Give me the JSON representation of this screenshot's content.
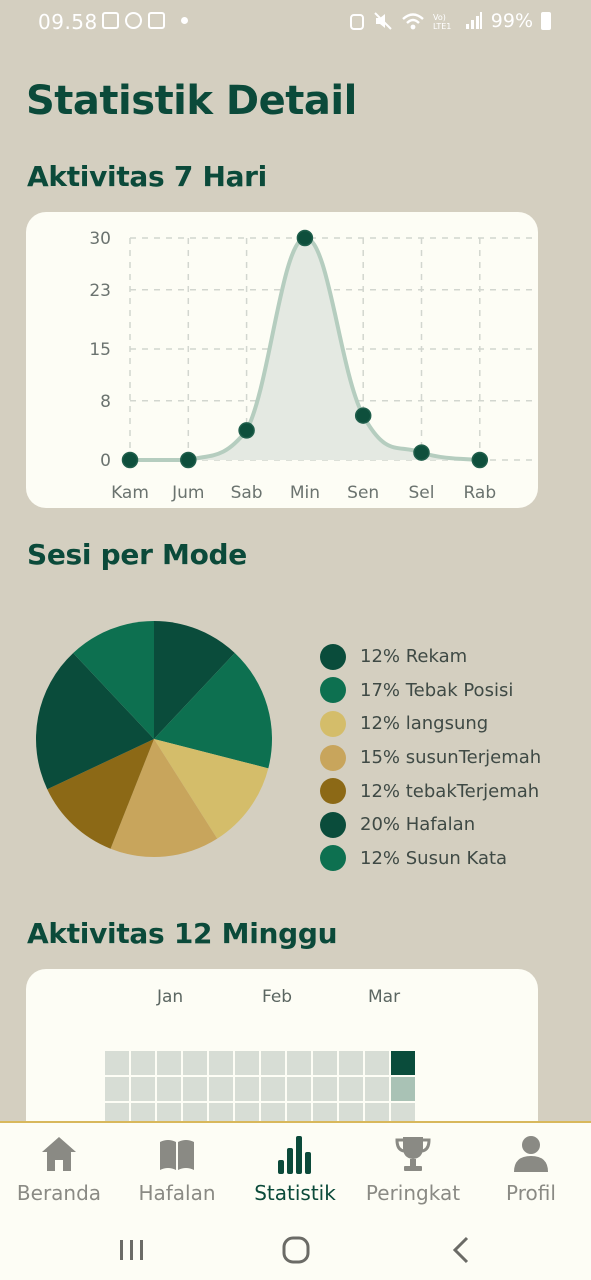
{
  "status_bar": {
    "time": "09.58",
    "battery": "99%"
  },
  "page": {
    "title": "Statistik Detail"
  },
  "sections": {
    "weekly": "Aktivitas 7 Hari",
    "mode": "Sesi per Mode",
    "heatmap": "Aktivitas 12 Minggu"
  },
  "chart_data": [
    {
      "type": "line",
      "categories": [
        "Kam",
        "Jum",
        "Sab",
        "Min",
        "Sen",
        "Sel",
        "Rab"
      ],
      "values": [
        0,
        0,
        4,
        30,
        6,
        1,
        0
      ],
      "ylim": [
        0,
        30
      ],
      "yticks": [
        "0",
        "8",
        "15",
        "23",
        "30"
      ],
      "grid": true,
      "colors": {
        "line": "#b5cdbf",
        "fill": "#e4e9e2",
        "point": "#0e4f3c"
      }
    },
    {
      "type": "pie",
      "slices": [
        {
          "label": "Rekam",
          "percent_label": "12%",
          "value": 12,
          "color": "#0a4c3b"
        },
        {
          "label": "Tebak Posisi",
          "percent_label": "17%",
          "value": 17,
          "color": "#0d7050"
        },
        {
          "label": "langsung",
          "percent_label": "12%",
          "value": 12,
          "color": "#d4bd6a"
        },
        {
          "label": "susunTerjemah",
          "percent_label": "15%",
          "value": 15,
          "color": "#c8a55c"
        },
        {
          "label": "tebakTerjemah",
          "percent_label": "12%",
          "value": 12,
          "color": "#8c6916"
        },
        {
          "label": "Hafalan",
          "percent_label": "20%",
          "value": 20,
          "color": "#0a4c3b"
        },
        {
          "label": "Susun Kata",
          "percent_label": "12%",
          "value": 12,
          "color": "#0d7050"
        }
      ],
      "legend_position": "right"
    },
    {
      "type": "heatmap",
      "months": [
        "Jan",
        "Feb",
        "Mar"
      ],
      "colors": {
        "empty": "#d7ddd5",
        "low": "#a9c2b5",
        "high": "#0a4c3b"
      }
    }
  ],
  "bottom_nav": [
    {
      "label": "Beranda",
      "icon": "home-icon",
      "active": false
    },
    {
      "label": "Hafalan",
      "icon": "book-icon",
      "active": false
    },
    {
      "label": "Statistik",
      "icon": "bar-chart-icon",
      "active": true
    },
    {
      "label": "Peringkat",
      "icon": "trophy-icon",
      "active": false
    },
    {
      "label": "Profil",
      "icon": "person-icon",
      "active": false
    }
  ],
  "system_nav": [
    "recents-icon",
    "home-button-icon",
    "back-icon"
  ]
}
